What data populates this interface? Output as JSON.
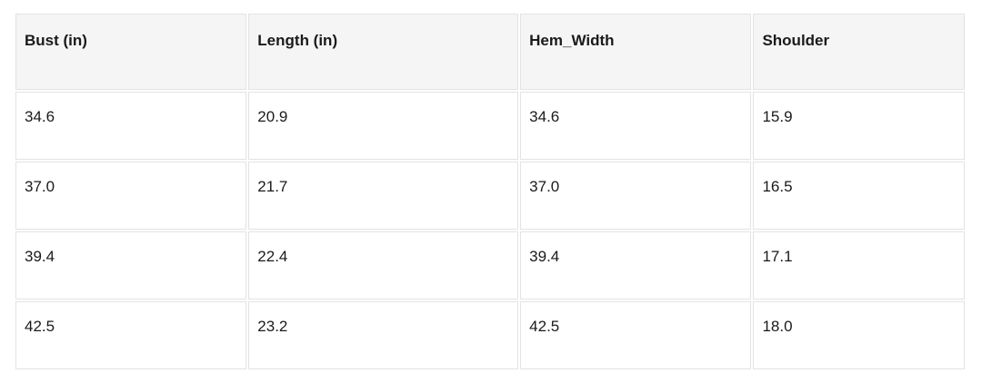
{
  "colors": {
    "page_background": "#ffffff",
    "header_background": "#f5f5f5",
    "cell_border": "#e3e3e3",
    "text": "#1a1a1a"
  },
  "chart_data": {
    "type": "table",
    "columns": [
      "Bust (in)",
      "Length (in)",
      "Hem_Width",
      "Shoulder"
    ],
    "rows": [
      [
        "34.6",
        "20.9",
        "34.6",
        "15.9"
      ],
      [
        "37.0",
        "21.7",
        "37.0",
        "16.5"
      ],
      [
        "39.4",
        "22.4",
        "39.4",
        "17.1"
      ],
      [
        "42.5",
        "23.2",
        "42.5",
        "18.0"
      ]
    ]
  }
}
